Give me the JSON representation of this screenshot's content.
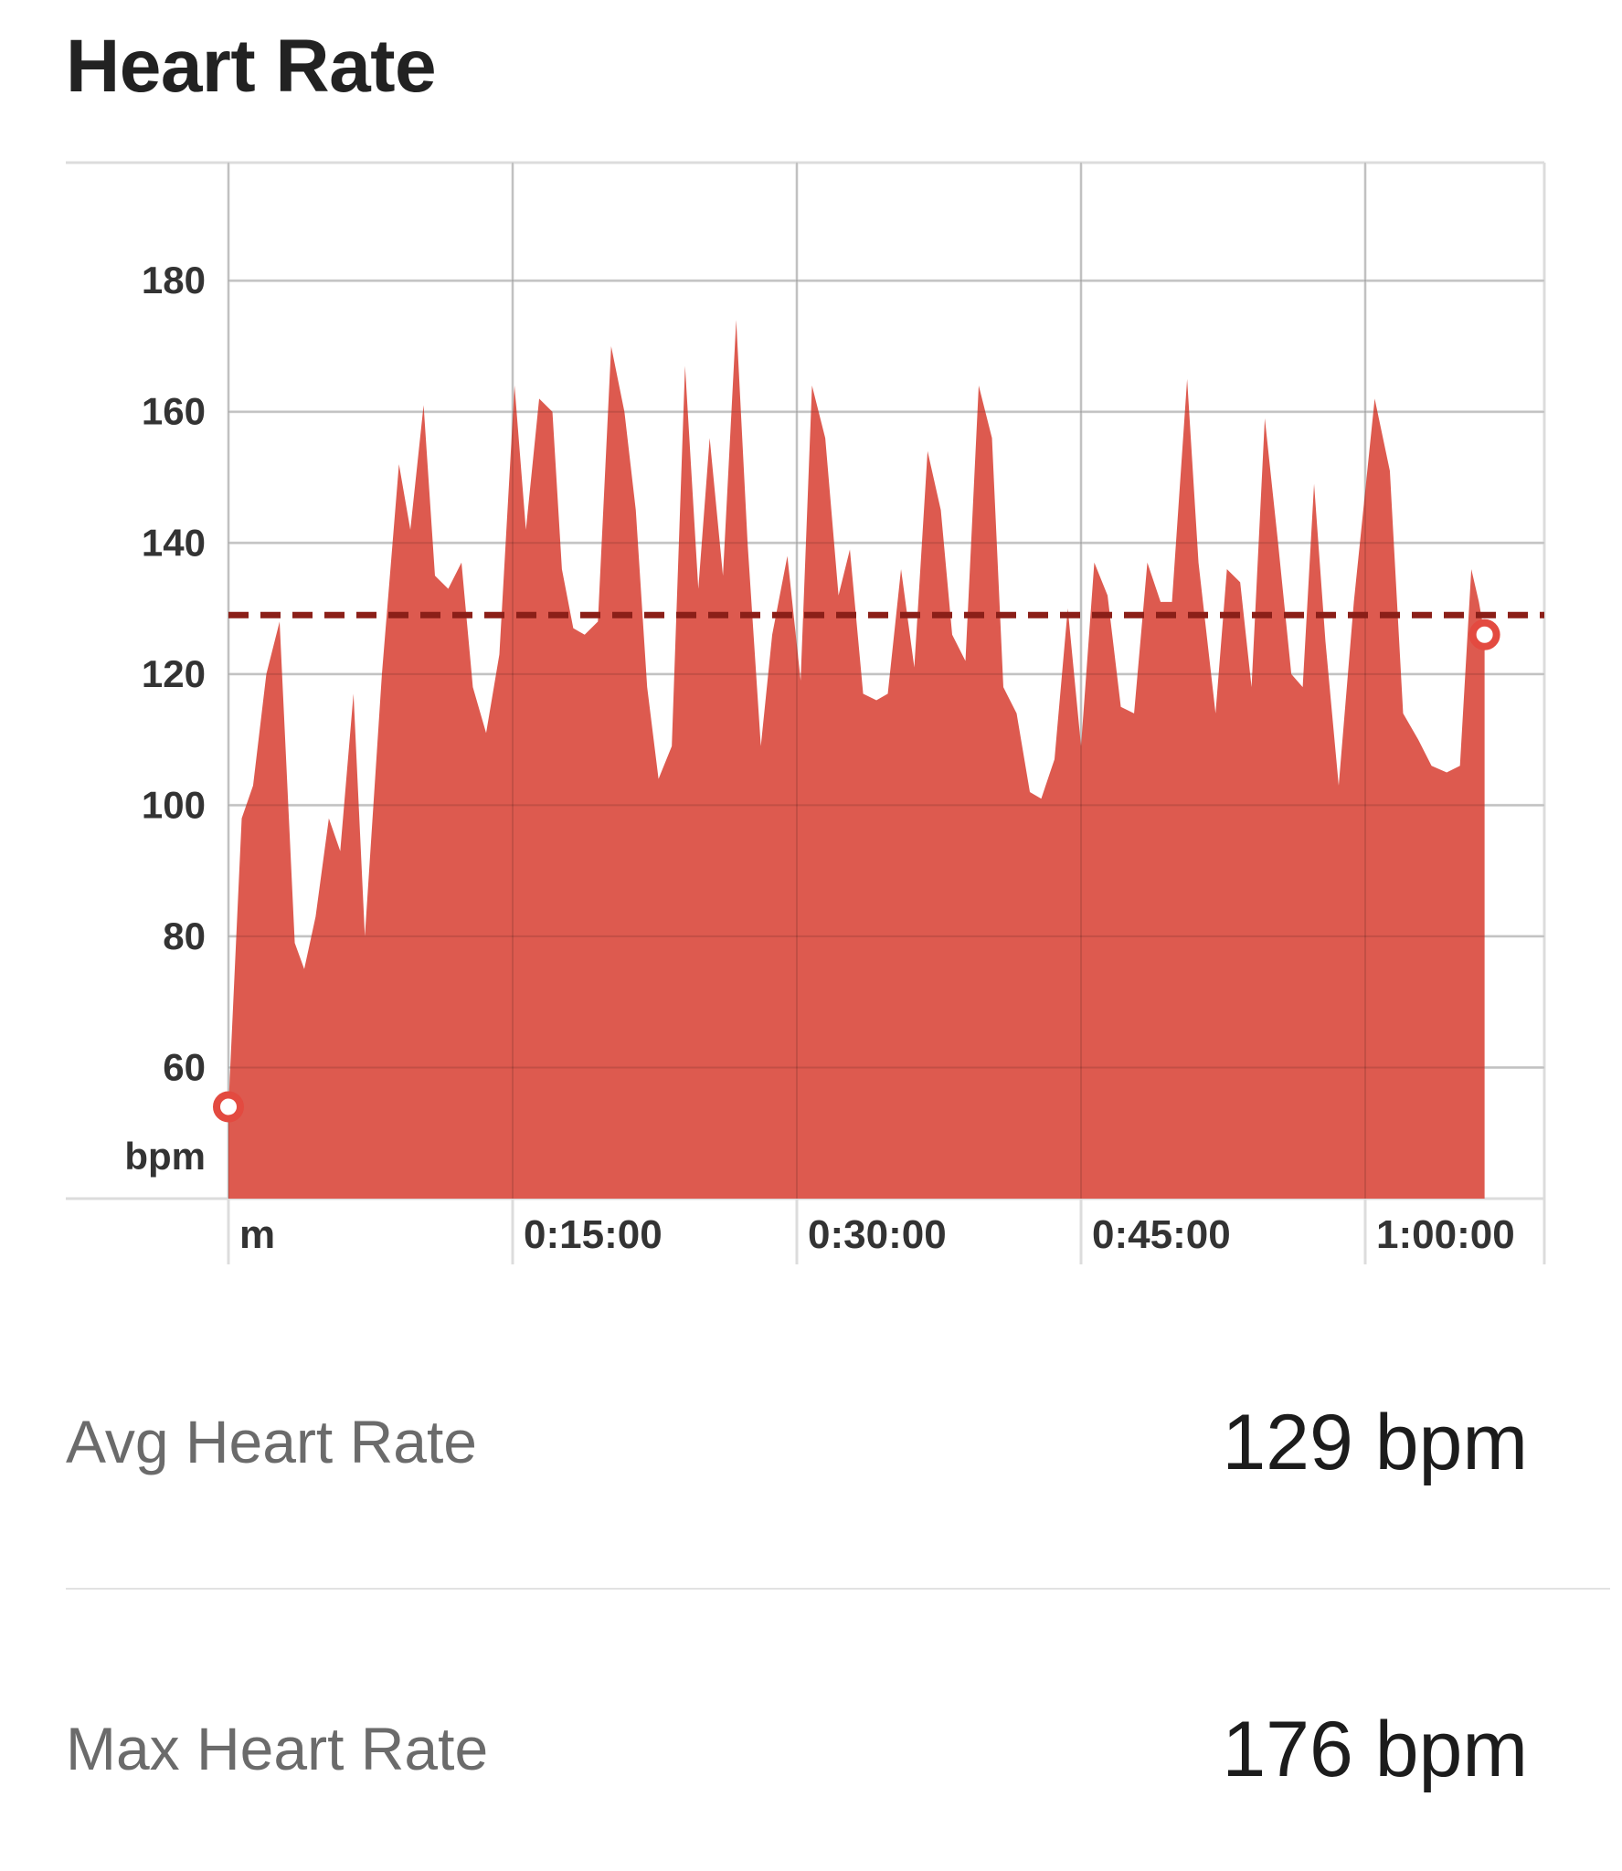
{
  "header": {
    "title": "Heart Rate"
  },
  "stats": [
    {
      "label": "Avg Heart Rate",
      "value": "129 bpm"
    },
    {
      "label": "Max Heart Rate",
      "value": "176 bpm"
    }
  ],
  "chart_data": {
    "type": "area",
    "title": "Heart Rate",
    "ylabel": "bpm",
    "xlabel": "",
    "ylim": [
      40,
      198
    ],
    "xlim": [
      0,
      62.6
    ],
    "yticks": [
      60,
      80,
      100,
      120,
      140,
      160,
      180
    ],
    "xticks": [
      {
        "value": 0,
        "label": "m"
      },
      {
        "value": 15,
        "label": "0:15:00"
      },
      {
        "value": 30,
        "label": "0:30:00"
      },
      {
        "value": 45,
        "label": "0:45:00"
      },
      {
        "value": 60,
        "label": "1:00:00"
      }
    ],
    "average": 129,
    "grid": true,
    "colors": {
      "fill": "#dd5a4f",
      "average_line": "#8b1f18",
      "grid": "#dcdcdc",
      "marker_ring": "#e34a40"
    },
    "series": [
      {
        "values": [
          [
            0,
            54
          ],
          [
            0.7,
            98
          ],
          [
            1.3,
            103
          ],
          [
            2,
            120
          ],
          [
            2.7,
            128
          ],
          [
            3.5,
            79
          ],
          [
            4,
            75
          ],
          [
            4.6,
            83
          ],
          [
            5.3,
            98
          ],
          [
            5.9,
            93
          ],
          [
            6.6,
            117
          ],
          [
            7.2,
            80
          ],
          [
            8.1,
            120
          ],
          [
            9,
            152
          ],
          [
            9.6,
            142
          ],
          [
            10.3,
            161
          ],
          [
            10.9,
            135
          ],
          [
            11.6,
            133
          ],
          [
            12.3,
            137
          ],
          [
            12.9,
            118
          ],
          [
            13.6,
            111
          ],
          [
            14.3,
            123
          ],
          [
            15.1,
            164
          ],
          [
            15.7,
            142
          ],
          [
            16.4,
            162
          ],
          [
            17.1,
            160
          ],
          [
            17.6,
            136
          ],
          [
            18.2,
            127
          ],
          [
            18.8,
            126
          ],
          [
            19.5,
            128
          ],
          [
            20.2,
            170
          ],
          [
            20.9,
            160
          ],
          [
            21.5,
            145
          ],
          [
            22.1,
            118
          ],
          [
            22.7,
            104
          ],
          [
            23.4,
            109
          ],
          [
            24.1,
            167
          ],
          [
            24.8,
            133
          ],
          [
            25.4,
            156
          ],
          [
            26.1,
            135
          ],
          [
            26.8,
            174
          ],
          [
            27.4,
            140
          ],
          [
            28.1,
            109
          ],
          [
            28.7,
            126
          ],
          [
            29.5,
            138
          ],
          [
            30.2,
            119
          ],
          [
            30.8,
            164
          ],
          [
            31.5,
            156
          ],
          [
            32.2,
            132
          ],
          [
            32.8,
            139
          ],
          [
            33.5,
            117
          ],
          [
            34.2,
            116
          ],
          [
            34.8,
            117
          ],
          [
            35.5,
            136
          ],
          [
            36.2,
            121
          ],
          [
            36.9,
            154
          ],
          [
            37.6,
            145
          ],
          [
            38.2,
            126
          ],
          [
            38.9,
            122
          ],
          [
            39.6,
            164
          ],
          [
            40.3,
            156
          ],
          [
            40.9,
            118
          ],
          [
            41.6,
            114
          ],
          [
            42.3,
            102
          ],
          [
            42.9,
            101
          ],
          [
            43.6,
            107
          ],
          [
            44.3,
            130
          ],
          [
            45,
            109
          ],
          [
            45.7,
            137
          ],
          [
            46.4,
            132
          ],
          [
            47.1,
            115
          ],
          [
            47.8,
            114
          ],
          [
            48.5,
            137
          ],
          [
            49.2,
            131
          ],
          [
            49.8,
            131
          ],
          [
            50.6,
            165
          ],
          [
            51.2,
            137
          ],
          [
            52.1,
            114
          ],
          [
            52.7,
            136
          ],
          [
            53.4,
            134
          ],
          [
            54,
            118
          ],
          [
            54.7,
            159
          ],
          [
            55.4,
            140
          ],
          [
            56.1,
            120
          ],
          [
            56.7,
            118
          ],
          [
            57.3,
            149
          ],
          [
            57.9,
            125
          ],
          [
            58.6,
            103
          ],
          [
            59.4,
            131
          ],
          [
            60.5,
            162
          ],
          [
            61.3,
            151
          ],
          [
            62,
            114
          ],
          [
            62.8,
            110
          ],
          [
            63.5,
            106
          ],
          [
            64.3,
            105
          ],
          [
            65,
            106
          ],
          [
            65.6,
            136
          ],
          [
            66,
            131
          ],
          [
            66.3,
            126
          ]
        ]
      }
    ],
    "markers": [
      {
        "x": 0,
        "y": 54
      },
      {
        "x": 66.3,
        "y": 126
      }
    ]
  }
}
